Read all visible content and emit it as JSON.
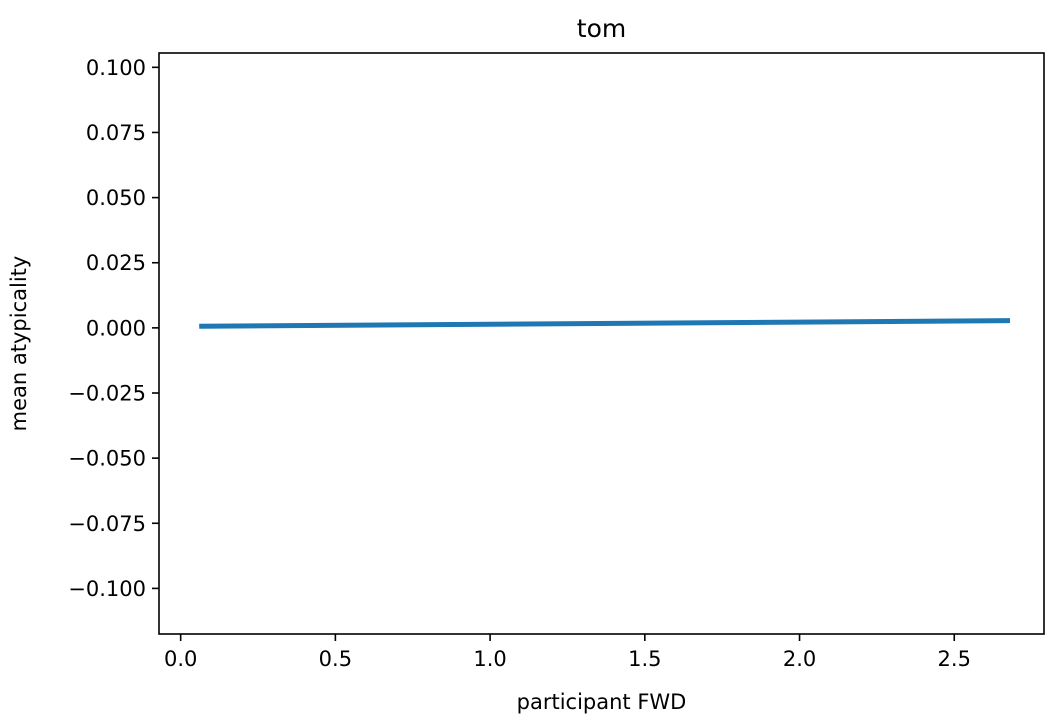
{
  "chart_data": {
    "type": "line",
    "title": "tom",
    "xlabel": "participant FWD",
    "ylabel": "mean atypicality",
    "xlim": [
      -0.07,
      2.79
    ],
    "ylim": [
      -0.1175,
      0.1055
    ],
    "xticks": [
      0.0,
      0.5,
      1.0,
      1.5,
      2.0,
      2.5
    ],
    "xtick_labels": [
      "0.0",
      "0.5",
      "1.0",
      "1.5",
      "2.0",
      "2.5"
    ],
    "yticks": [
      0.1,
      0.075,
      0.05,
      0.025,
      0.0,
      -0.025,
      -0.05,
      -0.075,
      -0.1
    ],
    "ytick_labels": [
      "0.100",
      "0.075",
      "0.050",
      "0.025",
      "0.000",
      "−0.025",
      "−0.050",
      "−0.075",
      "−0.100"
    ],
    "grid": false,
    "series": [
      {
        "color": "#1f77b4",
        "x": [
          0.06,
          2.68
        ],
        "y": [
          0.0006,
          0.0028
        ]
      }
    ]
  }
}
